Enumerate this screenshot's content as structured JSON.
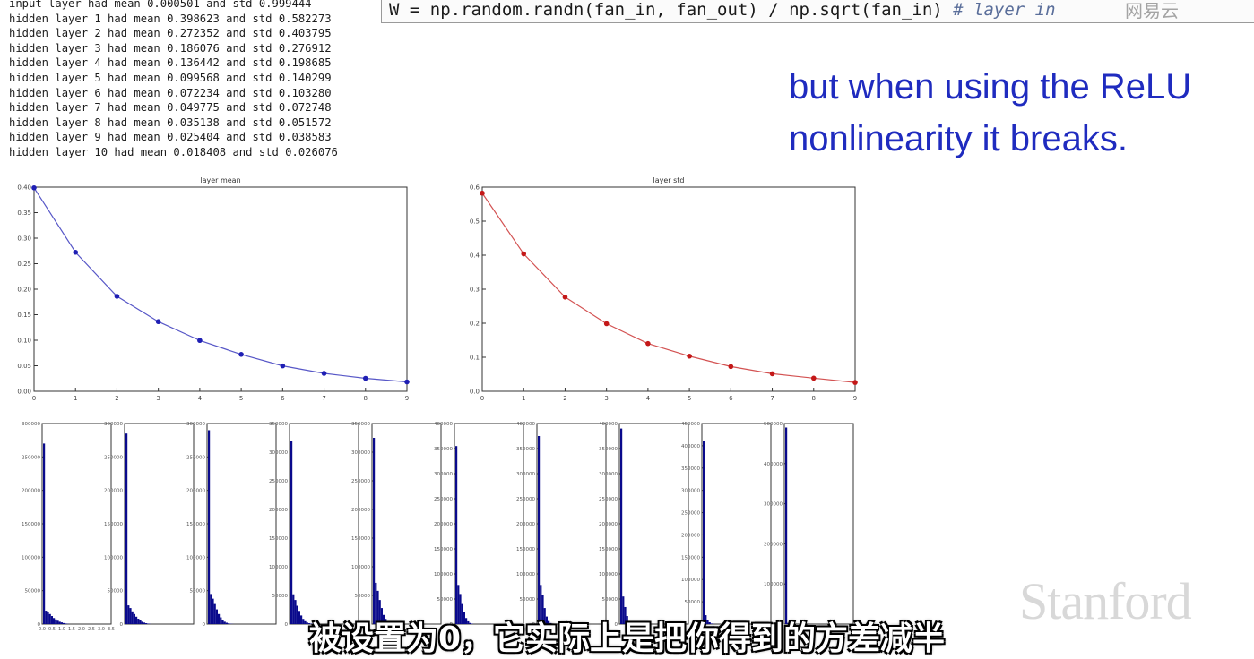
{
  "console_lines": [
    "input layer had mean 0.000501 and std 0.999444",
    "hidden layer 1 had mean 0.398623 and std 0.582273",
    "hidden layer 2 had mean 0.272352 and std 0.403795",
    "hidden layer 3 had mean 0.186076 and std 0.276912",
    "hidden layer 4 had mean 0.136442 and std 0.198685",
    "hidden layer 5 had mean 0.099568 and std 0.140299",
    "hidden layer 6 had mean 0.072234 and std 0.103280",
    "hidden layer 7 had mean 0.049775 and std 0.072748",
    "hidden layer 8 had mean 0.035138 and std 0.051572",
    "hidden layer 9 had mean 0.025404 and std 0.038583",
    "hidden layer 10 had mean 0.018408 and std 0.026076"
  ],
  "code": {
    "text": "W = np.random.randn(fan_in, fan_out) / np.sqrt(fan_in) ",
    "comment": "# layer in"
  },
  "slide": {
    "line1": "but when using the ReLU",
    "line2": "nonlinearity it breaks."
  },
  "watermark": "网易云",
  "logo": "Stanford",
  "subtitle": "被设置为0，它实际上是把你得到的方差减半",
  "colors": {
    "mean_line": "#1f1fb4",
    "std_line": "#c41818",
    "hist_fill": "#0a0a8c",
    "slide_text": "#1f2bbf"
  },
  "chart_data": [
    {
      "type": "line",
      "title": "layer mean",
      "x": [
        0,
        1,
        2,
        3,
        4,
        5,
        6,
        7,
        8,
        9
      ],
      "values": [
        0.398623,
        0.272352,
        0.186076,
        0.136442,
        0.099568,
        0.072234,
        0.049775,
        0.035138,
        0.025404,
        0.018408
      ],
      "xlim": [
        0,
        9
      ],
      "ylim": [
        0,
        0.4
      ],
      "xticks": [
        "0",
        "1",
        "2",
        "3",
        "4",
        "5",
        "6",
        "7",
        "8",
        "9"
      ],
      "yticks": [
        "0.00",
        "0.05",
        "0.10",
        "0.15",
        "0.20",
        "0.25",
        "0.30",
        "0.35",
        "0.40"
      ]
    },
    {
      "type": "line",
      "title": "layer std",
      "x": [
        0,
        1,
        2,
        3,
        4,
        5,
        6,
        7,
        8,
        9
      ],
      "values": [
        0.582273,
        0.403795,
        0.276912,
        0.198685,
        0.140299,
        0.10328,
        0.072748,
        0.051572,
        0.038583,
        0.026076
      ],
      "xlim": [
        0,
        9
      ],
      "ylim": [
        0,
        0.6
      ],
      "xticks": [
        "0",
        "1",
        "2",
        "3",
        "4",
        "5",
        "6",
        "7",
        "8",
        "9"
      ],
      "yticks": [
        "0.0",
        "0.1",
        "0.2",
        "0.3",
        "0.4",
        "0.5",
        "0.6"
      ]
    },
    {
      "type": "bar",
      "histograms": [
        {
          "ylim": [
            0,
            300000
          ],
          "yticks": [
            "0",
            "50000",
            "100000",
            "150000",
            "200000",
            "250000",
            "300000"
          ],
          "xticks": [
            "0.0",
            "0.5",
            "1.0",
            "1.5",
            "2.0",
            "2.5",
            "3.0",
            "3.5"
          ],
          "peak": 270000,
          "tail": [
            20000,
            18000,
            15000,
            12000,
            9000,
            7000,
            5000,
            3500,
            2500,
            1500,
            800,
            400
          ]
        },
        {
          "ylim": [
            0,
            300000
          ],
          "yticks": [
            "0",
            "50000",
            "100000",
            "150000",
            "200000",
            "250000",
            "300000"
          ],
          "xticks": [],
          "peak": 285000,
          "tail": [
            28000,
            24000,
            19000,
            15000,
            11000,
            8000,
            5500,
            3500,
            2200,
            1300,
            700,
            300
          ]
        },
        {
          "ylim": [
            0,
            300000
          ],
          "yticks": [
            "0",
            "50000",
            "100000",
            "150000",
            "200000",
            "250000",
            "300000"
          ],
          "xticks": [],
          "peak": 290000,
          "tail": [
            45000,
            38000,
            30000,
            22000,
            15000,
            10000,
            6000,
            3500,
            2000,
            1000,
            500,
            200
          ]
        },
        {
          "ylim": [
            0,
            350000
          ],
          "yticks": [
            "0",
            "50000",
            "100000",
            "150000",
            "200000",
            "250000",
            "300000",
            "350000"
          ],
          "xticks": [],
          "peak": 320000,
          "tail": [
            52000,
            42000,
            32000,
            23000,
            15000,
            9000,
            5000,
            2800,
            1500,
            700,
            300
          ]
        },
        {
          "ylim": [
            0,
            350000
          ],
          "yticks": [
            "0",
            "50000",
            "100000",
            "150000",
            "200000",
            "250000",
            "300000",
            "350000"
          ],
          "xticks": [],
          "peak": 325000,
          "tail": [
            72000,
            58000,
            42000,
            28000,
            16000,
            9000,
            4500,
            2200,
            1000,
            400
          ]
        },
        {
          "ylim": [
            0,
            400000
          ],
          "yticks": [
            "0",
            "50000",
            "100000",
            "150000",
            "200000",
            "250000",
            "300000",
            "350000",
            "400000"
          ],
          "xticks": [],
          "peak": 355000,
          "tail": [
            78000,
            60000,
            40000,
            24000,
            12000,
            5500,
            2200,
            800
          ]
        },
        {
          "ylim": [
            0,
            400000
          ],
          "yticks": [
            "0",
            "50000",
            "100000",
            "150000",
            "200000",
            "250000",
            "300000",
            "350000",
            "400000"
          ],
          "xticks": [],
          "peak": 375000,
          "tail": [
            78000,
            58000,
            32000,
            15000,
            6000,
            2000,
            600
          ]
        },
        {
          "ylim": [
            0,
            400000
          ],
          "yticks": [
            "0",
            "50000",
            "100000",
            "150000",
            "200000",
            "250000",
            "300000",
            "350000",
            "400000"
          ],
          "xticks": [],
          "peak": 390000,
          "tail": [
            55000,
            34000,
            16000,
            6000,
            1800,
            500
          ]
        },
        {
          "ylim": [
            0,
            450000
          ],
          "yticks": [
            "0",
            "50000",
            "100000",
            "150000",
            "200000",
            "250000",
            "300000",
            "350000",
            "400000",
            "450000"
          ],
          "xticks": [],
          "peak": 410000,
          "tail": [
            20000,
            10000,
            4000,
            1200,
            300
          ]
        },
        {
          "ylim": [
            0,
            500000
          ],
          "yticks": [
            "0",
            "100000",
            "200000",
            "300000",
            "400000",
            "500000"
          ],
          "xticks": [],
          "peak": 490000,
          "tail": [
            3000,
            800,
            200
          ]
        }
      ]
    }
  ]
}
